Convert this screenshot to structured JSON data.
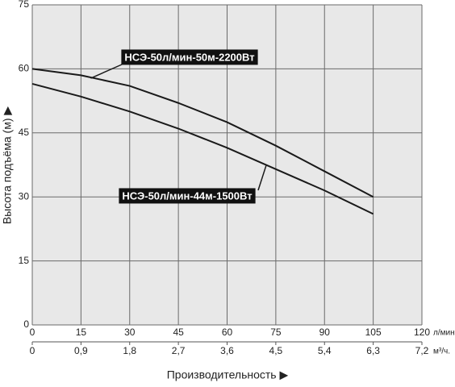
{
  "chart_data": {
    "type": "line",
    "ylabel": "Высота подъёма (м) ▶",
    "xlabel": "Производительность ▶",
    "x_unit": "л/мин.",
    "x2_unit": "м³/ч.",
    "x": [
      0,
      15,
      30,
      45,
      60,
      75,
      90,
      105
    ],
    "series": [
      {
        "name": "НСЭ-50л/мин-50м-2200Вт",
        "color": "#1a1a1a",
        "values": [
          60,
          58.5,
          56,
          52,
          47.5,
          42,
          36,
          30
        ]
      },
      {
        "name": "НСЭ-50л/мин-44м-1500Вт",
        "color": "#1a1a1a",
        "values": [
          56.5,
          53.5,
          50,
          46,
          41.5,
          36.5,
          31.5,
          26
        ]
      }
    ],
    "xlim": [
      0,
      120
    ],
    "xticks": [
      0,
      15,
      30,
      45,
      60,
      75,
      90,
      105,
      120
    ],
    "x2lim": [
      0,
      7.2
    ],
    "x2ticks": [
      0,
      {
        "value": 0.9,
        "label": "0,9"
      },
      {
        "value": 1.8,
        "label": "1,8"
      },
      {
        "value": 2.7,
        "label": "2,7"
      },
      {
        "value": 3.6,
        "label": "3,6"
      },
      {
        "value": 4.5,
        "label": "4,5"
      },
      {
        "value": 5.4,
        "label": "5,4"
      },
      {
        "value": 6.3,
        "label": "6,3"
      },
      {
        "value": 7.2,
        "label": "7,2"
      }
    ],
    "ylim": [
      0,
      75
    ],
    "yticks": [
      0,
      15,
      30,
      45,
      60,
      75
    ],
    "grid": true
  }
}
